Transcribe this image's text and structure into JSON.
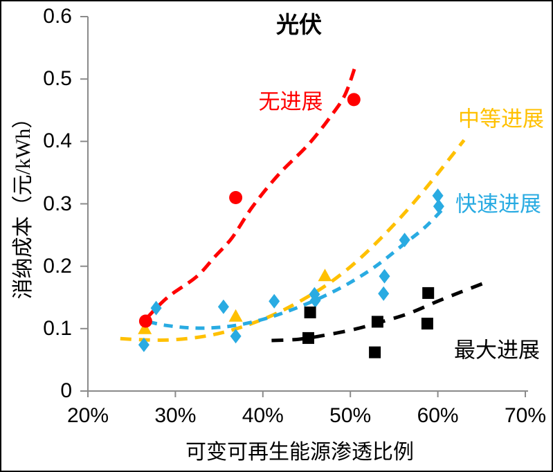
{
  "chart_data": {
    "type": "scatter",
    "title": "光伏",
    "xlabel": "可变可再生能源渗透比例",
    "ylabel": "消纳成本（元/kWh）",
    "grid": false,
    "legend_position": "inline-annotations",
    "axis_color": "#8A8A8A",
    "x_axis": {
      "min": 20,
      "max": 70,
      "unit": "%",
      "tick_values": [
        20,
        30,
        40,
        50,
        60,
        70
      ],
      "tick_labels": [
        "20%",
        "30%",
        "40%",
        "50%",
        "60%",
        "70%"
      ]
    },
    "y_axis": {
      "min": 0,
      "max": 0.6,
      "tick_values": [
        0,
        0.1,
        0.2,
        0.3,
        0.4,
        0.5,
        0.6
      ],
      "tick_labels": [
        "0",
        "0.1",
        "0.2",
        "0.3",
        "0.4",
        "0.5",
        "0.6"
      ]
    },
    "series": [
      {
        "name": "no-progress",
        "label": "无进展",
        "color": "#FF0000",
        "marker": "circle",
        "points": [
          [
            26.6,
            0.112
          ],
          [
            36.9,
            0.31
          ],
          [
            50.4,
            0.467
          ]
        ],
        "trend": [
          [
            26.6,
            0.115
          ],
          [
            29.1,
            0.15
          ],
          [
            32.4,
            0.183
          ],
          [
            34.5,
            0.215
          ],
          [
            36.5,
            0.246
          ],
          [
            38.8,
            0.295
          ],
          [
            41.8,
            0.347
          ],
          [
            45.2,
            0.395
          ],
          [
            47.8,
            0.441
          ],
          [
            49.4,
            0.475
          ],
          [
            50.6,
            0.522
          ]
        ]
      },
      {
        "name": "moderate-progress",
        "label": "中等进展",
        "color": "#FFC000",
        "marker": "triangle",
        "points": [
          [
            26.5,
            0.1
          ],
          [
            36.9,
            0.12
          ],
          [
            47.1,
            0.185
          ]
        ],
        "trend": [
          [
            23.7,
            0.084
          ],
          [
            26.5,
            0.082
          ],
          [
            29.5,
            0.082
          ],
          [
            32.5,
            0.086
          ],
          [
            35.5,
            0.094
          ],
          [
            38.5,
            0.107
          ],
          [
            41.5,
            0.124
          ],
          [
            44.5,
            0.146
          ],
          [
            47.5,
            0.172
          ],
          [
            50.5,
            0.205
          ],
          [
            53.5,
            0.245
          ],
          [
            56.5,
            0.29
          ],
          [
            59.5,
            0.34
          ],
          [
            63.0,
            0.402
          ]
        ]
      },
      {
        "name": "rapid-progress",
        "label": "快速进展",
        "color": "#29ABE2",
        "marker": "diamond",
        "points": [
          [
            26.4,
            0.074
          ],
          [
            27.8,
            0.133
          ],
          [
            35.5,
            0.135
          ],
          [
            36.9,
            0.088
          ],
          [
            41.3,
            0.144
          ],
          [
            45.9,
            0.155
          ],
          [
            46.0,
            0.145
          ],
          [
            53.9,
            0.184
          ],
          [
            53.8,
            0.156
          ],
          [
            56.2,
            0.242
          ],
          [
            60.0,
            0.313
          ],
          [
            60.1,
            0.296
          ]
        ],
        "trend": [
          [
            26.9,
            0.111
          ],
          [
            29.0,
            0.105
          ],
          [
            32.0,
            0.101
          ],
          [
            35.0,
            0.102
          ],
          [
            38.0,
            0.108
          ],
          [
            41.0,
            0.119
          ],
          [
            44.0,
            0.134
          ],
          [
            47.0,
            0.152
          ],
          [
            50.0,
            0.174
          ],
          [
            53.0,
            0.201
          ],
          [
            56.0,
            0.234
          ],
          [
            58.5,
            0.262
          ],
          [
            60.8,
            0.295
          ]
        ]
      },
      {
        "name": "maximum-progress",
        "label": "最大进展",
        "color": "#000000",
        "marker": "square",
        "points": [
          [
            45.4,
            0.126
          ],
          [
            45.2,
            0.085
          ],
          [
            53.1,
            0.111
          ],
          [
            52.8,
            0.062
          ],
          [
            58.9,
            0.157
          ],
          [
            58.8,
            0.108
          ]
        ],
        "trend": [
          [
            41.0,
            0.081
          ],
          [
            44.1,
            0.083
          ],
          [
            47.3,
            0.09
          ],
          [
            50.5,
            0.099
          ],
          [
            53.6,
            0.111
          ],
          [
            56.8,
            0.125
          ],
          [
            60.0,
            0.144
          ],
          [
            62.7,
            0.159
          ],
          [
            65.1,
            0.172
          ]
        ]
      }
    ]
  }
}
